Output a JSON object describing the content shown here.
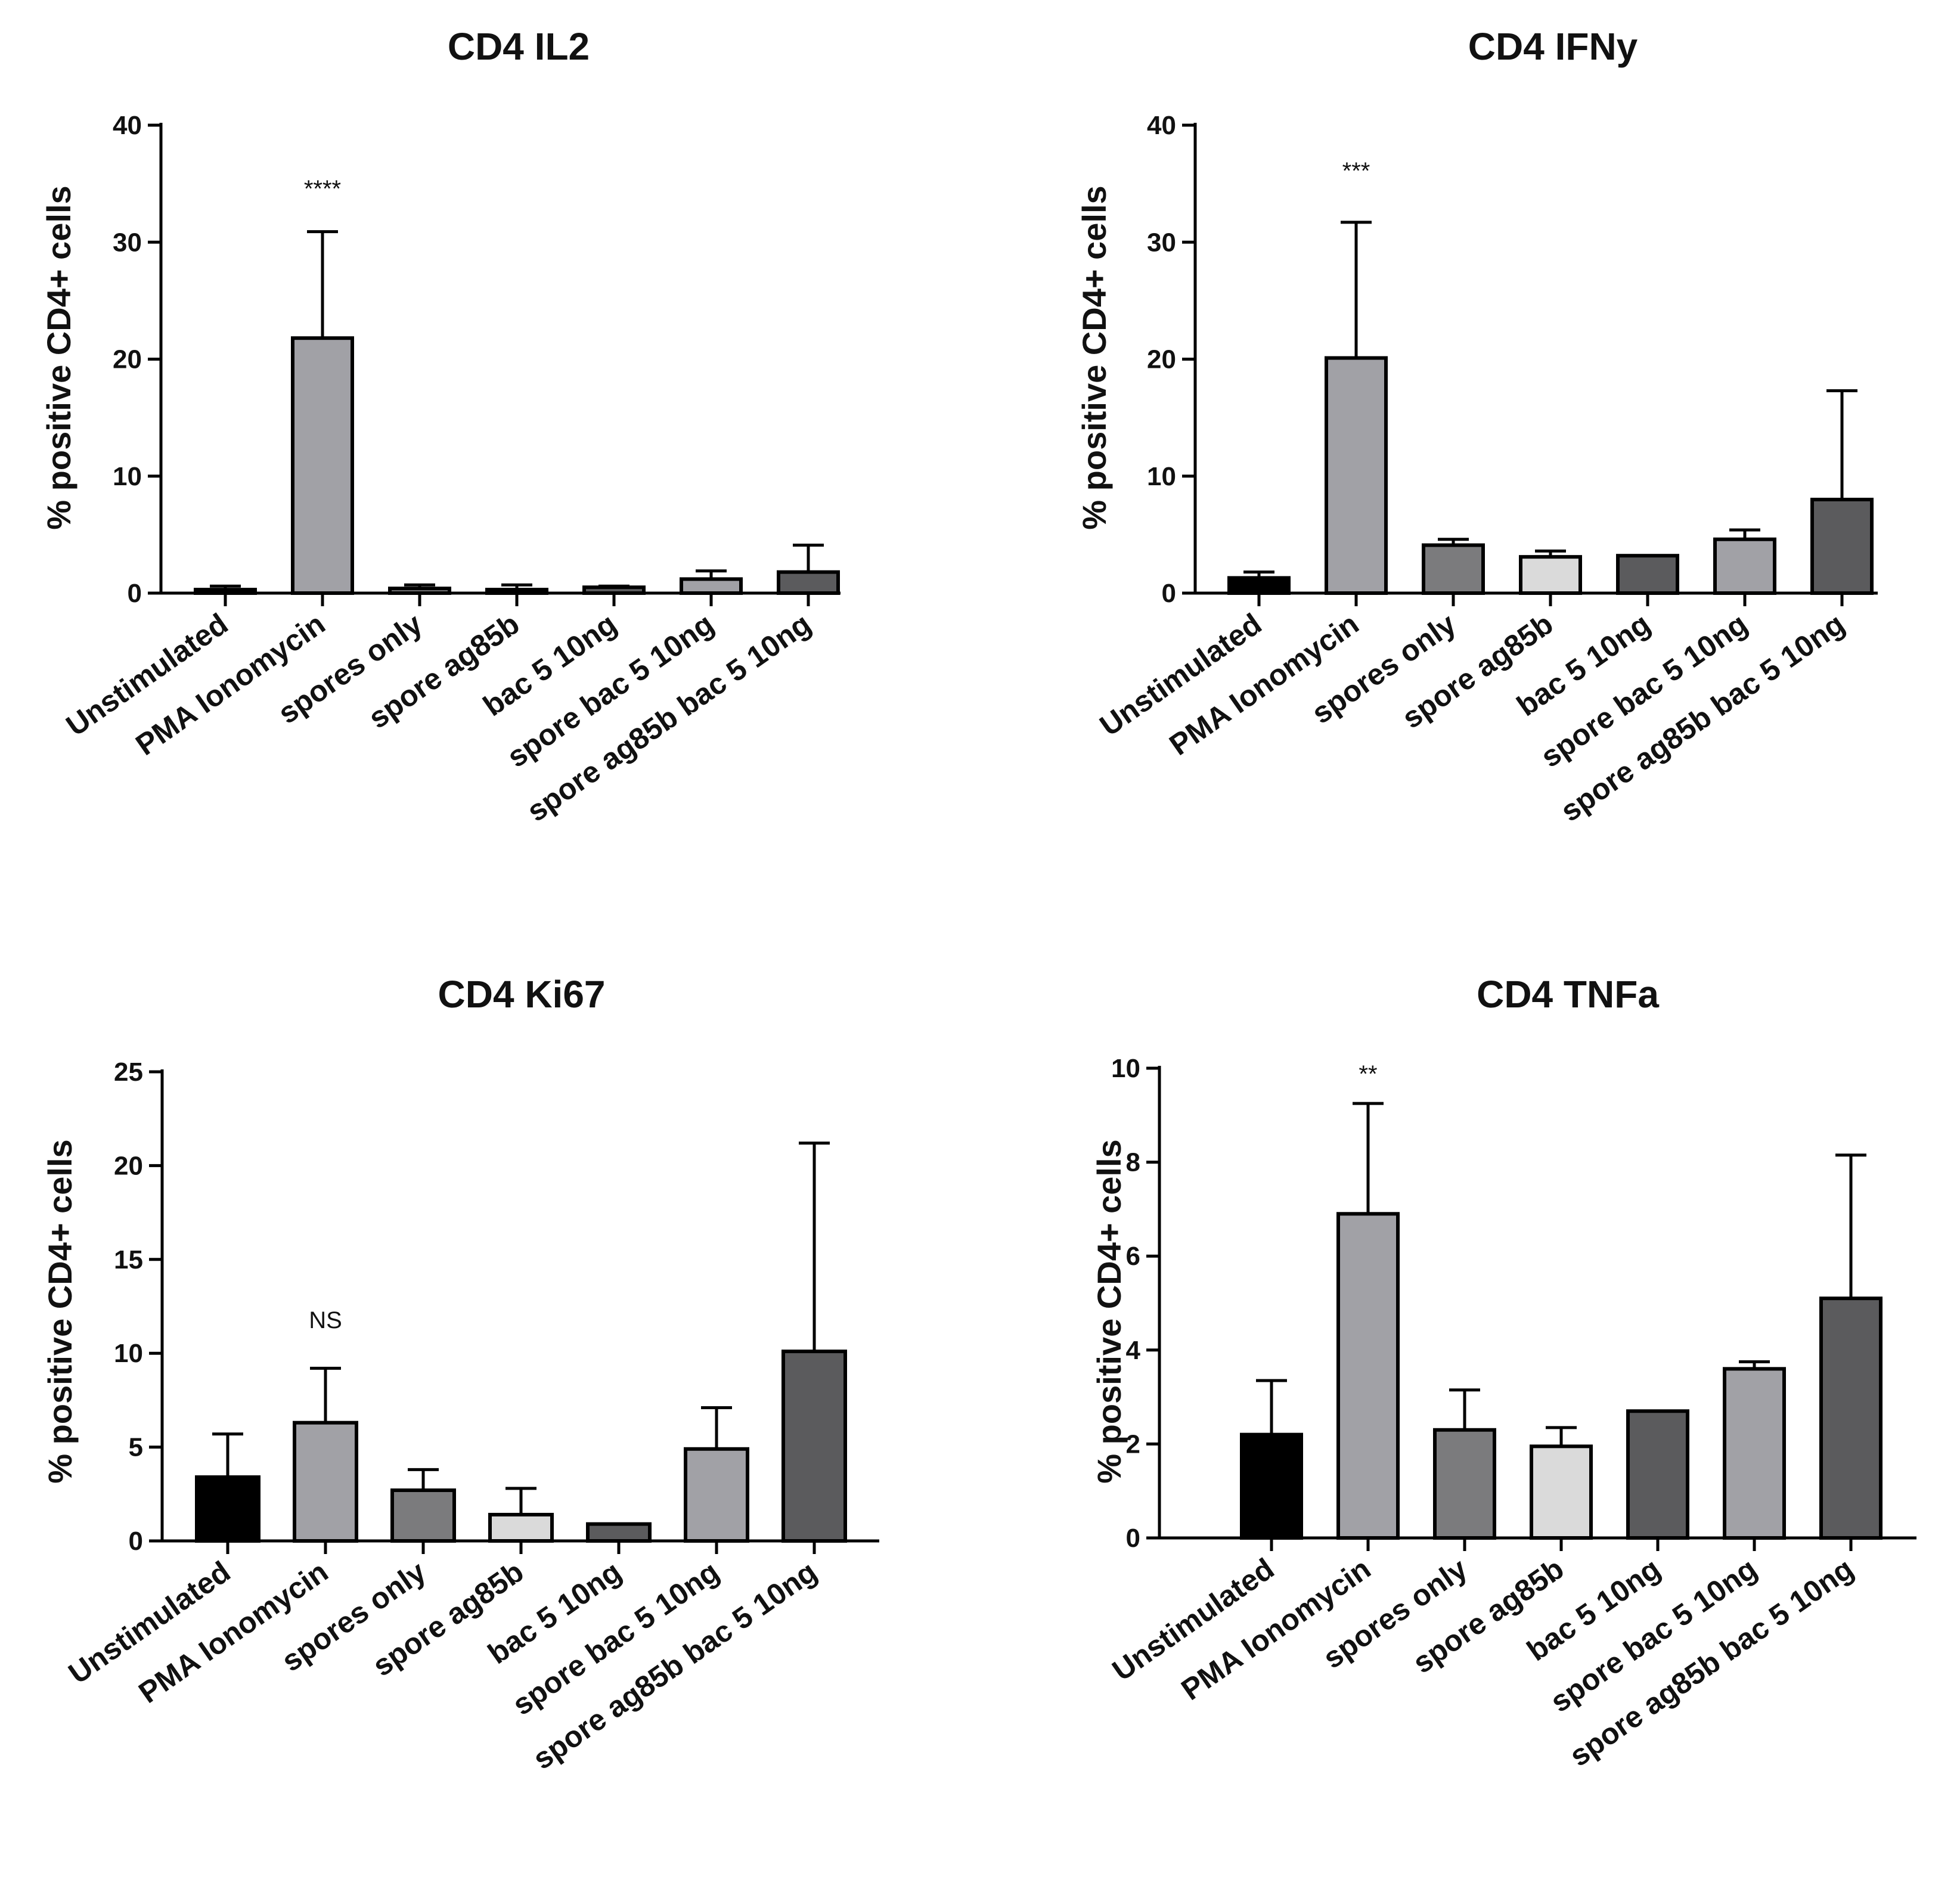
{
  "chart_data": [
    {
      "type": "bar",
      "title": "CD4 IL2",
      "ylabel": "% positive CD4+ cells",
      "xlabel": "",
      "ylim": [
        0,
        40
      ],
      "yticks": [
        "0",
        "10",
        "20",
        "30",
        "40"
      ],
      "categories": [
        "Unstimulated",
        "PMA Ionomycin",
        "spores only",
        "spore ag85b",
        "bac 5 10ng",
        "spore bac 5 10ng",
        "spore ag85b bac 5 10ng"
      ],
      "values": [
        0.3,
        21.8,
        0.4,
        0.3,
        0.5,
        1.2,
        1.8
      ],
      "errors": [
        0.3,
        9.1,
        0.3,
        0.4,
        0.1,
        0.7,
        2.3
      ],
      "annotation": {
        "index": 1,
        "text": "****"
      }
    },
    {
      "type": "bar",
      "title": "CD4 IFNy",
      "ylabel": "% positive CD4+ cells",
      "xlabel": "",
      "ylim": [
        0,
        40
      ],
      "yticks": [
        "0",
        "10",
        "20",
        "30",
        "40"
      ],
      "categories": [
        "Unstimulated",
        "PMA Ionomycin",
        "spores only",
        "spore ag85b",
        "bac 5 10ng",
        "spore bac 5 10ng",
        "spore ag85b bac 5 10ng"
      ],
      "values": [
        1.3,
        20.1,
        4.1,
        3.1,
        3.2,
        4.6,
        8.0
      ],
      "errors": [
        0.5,
        11.6,
        0.5,
        0.5,
        0.0,
        0.8,
        9.3
      ],
      "annotation": {
        "index": 1,
        "text": "***"
      }
    },
    {
      "type": "bar",
      "title": "CD4 Ki67",
      "ylabel": "% positive CD4+ cells",
      "xlabel": "",
      "ylim": [
        0,
        25
      ],
      "yticks": [
        "0",
        "5",
        "10",
        "15",
        "20",
        "25"
      ],
      "categories": [
        "Unstimulated",
        "PMA Ionomycin",
        "spores only",
        "spore ag85b",
        "bac 5 10ng",
        "spore bac 5 10ng",
        "spore ag85b bac 5 10ng"
      ],
      "values": [
        3.4,
        6.3,
        2.7,
        1.4,
        0.9,
        4.9,
        10.1
      ],
      "errors": [
        2.3,
        2.9,
        1.1,
        1.4,
        0.0,
        2.2,
        11.1
      ],
      "annotation": {
        "index": 1,
        "text": "NS"
      }
    },
    {
      "type": "bar",
      "title": "CD4 TNFa",
      "ylabel": "% positive CD4+ cells",
      "xlabel": "",
      "ylim": [
        0,
        10
      ],
      "yticks": [
        "0",
        "2",
        "4",
        "6",
        "8",
        "10"
      ],
      "categories": [
        "Unstimulated",
        "PMA Ionomycin",
        "spores only",
        "spore ag85b",
        "bac 5 10ng",
        "spore bac 5 10ng",
        "spore ag85b bac 5 10ng"
      ],
      "values": [
        2.2,
        6.9,
        2.3,
        1.95,
        2.7,
        3.6,
        5.1
      ],
      "errors": [
        1.15,
        2.35,
        0.85,
        0.4,
        0.0,
        0.15,
        3.05
      ],
      "annotation": {
        "index": 1,
        "text": "**"
      }
    }
  ],
  "colors": {
    "bars": [
      "#000000",
      "#a1a1a6",
      "#7b7b7d",
      "#dadada",
      "#5b5b5d",
      "#a1a1a6",
      "#5b5b5d"
    ],
    "stroke": "#000000"
  }
}
